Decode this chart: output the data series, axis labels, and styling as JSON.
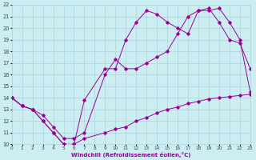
{
  "xlabel": "Windchill (Refroidissement éolien,°C)",
  "xlim": [
    0,
    23
  ],
  "ylim": [
    10,
    22
  ],
  "xticks": [
    0,
    1,
    2,
    3,
    4,
    5,
    6,
    7,
    8,
    9,
    10,
    11,
    12,
    13,
    14,
    15,
    16,
    17,
    18,
    19,
    20,
    21,
    22,
    23
  ],
  "yticks": [
    10,
    11,
    12,
    13,
    14,
    15,
    16,
    17,
    18,
    19,
    20,
    21,
    22
  ],
  "background_color": "#cceef2",
  "grid_color": "#aad4dc",
  "line_color": "#990099",
  "line1_x": [
    0,
    1,
    2,
    3,
    4,
    5,
    6,
    7,
    9,
    10,
    11,
    12,
    13,
    14,
    15,
    16,
    17,
    18,
    19,
    20,
    21,
    22,
    23
  ],
  "line1_y": [
    14.0,
    13.3,
    13.0,
    12.0,
    11.0,
    10.0,
    10.0,
    10.5,
    11.0,
    11.3,
    11.5,
    12.0,
    12.3,
    12.7,
    13.0,
    13.2,
    13.5,
    13.7,
    13.9,
    14.0,
    14.1,
    14.2,
    14.3
  ],
  "line2_x": [
    0,
    1,
    2,
    3,
    4,
    5,
    6,
    7,
    9,
    10,
    11,
    12,
    13,
    14,
    15,
    16,
    17,
    18,
    19,
    20,
    21,
    22,
    23
  ],
  "line2_y": [
    14.0,
    13.3,
    13.0,
    12.0,
    11.0,
    10.0,
    10.0,
    13.8,
    16.5,
    16.5,
    19.0,
    20.5,
    21.5,
    21.2,
    20.5,
    20.0,
    19.5,
    21.5,
    21.7,
    20.5,
    19.0,
    18.7,
    16.5
  ],
  "line3_x": [
    0,
    1,
    2,
    3,
    4,
    5,
    6,
    7,
    9,
    10,
    11,
    12,
    13,
    14,
    15,
    16,
    17,
    18,
    19,
    20,
    21,
    22,
    23
  ],
  "line3_y": [
    14.0,
    13.3,
    13.0,
    12.5,
    11.5,
    10.5,
    10.5,
    11.0,
    16.0,
    17.3,
    16.5,
    16.5,
    17.0,
    17.5,
    18.0,
    19.5,
    21.0,
    21.5,
    21.5,
    21.7,
    20.5,
    19.0,
    14.5
  ]
}
